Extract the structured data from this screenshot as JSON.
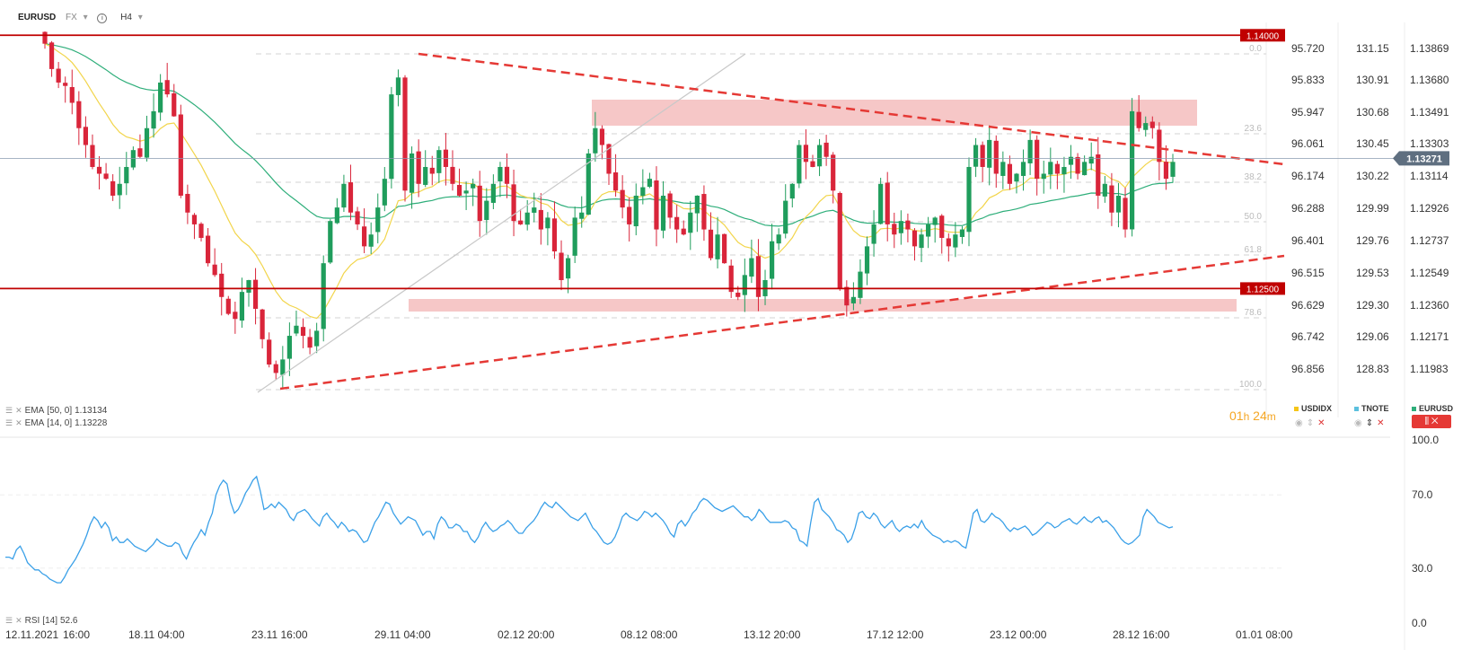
{
  "header": {
    "symbol": "EURUSD",
    "market": "FX",
    "timeframe": "H4"
  },
  "indicators": [
    {
      "label": "EMA",
      "params": "[50, 0]",
      "value": "1.13134",
      "color": "#2eae7a"
    },
    {
      "label": "EMA",
      "params": "[14, 0]",
      "value": "1.13228",
      "color": "#f2d54b"
    }
  ],
  "rsi_label": {
    "label": "RSI",
    "params": "[14]",
    "value": "52.6"
  },
  "countdown": {
    "hours": "01",
    "h_unit": "h",
    "minutes": "24",
    "m_unit": "m"
  },
  "series_keys": [
    {
      "name": "USDIDX",
      "color": "#f5c518"
    },
    {
      "name": "TNOTE",
      "color": "#5bc0de"
    },
    {
      "name": "EURUSD",
      "color": "#2eae7a"
    }
  ],
  "colors": {
    "bull": "#1f9d5c",
    "bear": "#d9253a",
    "level": "#c00000",
    "trend": "#e53935",
    "rsi": "#3aa0e8",
    "zone": "#f4b9b9"
  },
  "chart_data": [
    {
      "type": "candlestick",
      "x_tick_labels": [
        "12.11.2021",
        "16:00",
        "18.11 04:00",
        "23.11 16:00",
        "29.11 04:00",
        "02.12 20:00",
        "08.12 08:00",
        "13.12 20:00",
        "17.12 12:00",
        "23.12 00:00",
        "28.12 16:00",
        "01.01 08:00"
      ],
      "price_axis_eurusd": [
        "1.13869",
        "1.13680",
        "1.13491",
        "1.13303",
        "1.13114",
        "1.12926",
        "1.12737",
        "1.12549",
        "1.12360",
        "1.12171",
        "1.11983"
      ],
      "price_axis_usdidx": [
        "95.720",
        "95.833",
        "95.947",
        "96.061",
        "96.174",
        "96.288",
        "96.401",
        "96.515",
        "96.629",
        "96.742",
        "96.856"
      ],
      "price_axis_tnote": [
        "131.15",
        "130.91",
        "130.68",
        "130.45",
        "130.22",
        "129.99",
        "129.76",
        "129.53",
        "129.30",
        "129.06",
        "128.83"
      ],
      "current_price": "1.13271",
      "horizontal_levels": [
        {
          "price": 1.14,
          "label": "1.14000"
        },
        {
          "price": 1.125,
          "label": "1.12500"
        }
      ],
      "fibonacci_levels": [
        "0.0",
        "23.6",
        "38.2",
        "50.0",
        "61.8",
        "78.6",
        "100.0"
      ],
      "ylim": [
        1.1188,
        1.1406
      ],
      "ohlc_close": [
        1.1395,
        1.138,
        1.1372,
        1.137,
        1.136,
        1.1345,
        1.1335,
        1.1322,
        1.1318,
        1.1315,
        1.1305,
        1.1312,
        1.1322,
        1.1332,
        1.1328,
        1.1345,
        1.1355,
        1.1372,
        1.1365,
        1.1352,
        1.1305,
        1.1295,
        1.1288,
        1.128,
        1.1265,
        1.1258,
        1.1245,
        1.1235,
        1.1232,
        1.1248,
        1.1255,
        1.1238,
        1.122,
        1.1205,
        1.12,
        1.1208,
        1.1222,
        1.1228,
        1.1222,
        1.1215,
        1.1225,
        1.1265,
        1.129,
        1.1298,
        1.1312,
        1.1295,
        1.1288,
        1.1275,
        1.1282,
        1.1298,
        1.1315,
        1.1365,
        1.1375,
        1.1308,
        1.133,
        1.1312,
        1.1322,
        1.1318,
        1.1332,
        1.1322,
        1.1312,
        1.1305,
        1.1308,
        1.1312,
        1.129,
        1.1302,
        1.1312,
        1.1322,
        1.1312,
        1.129,
        1.1288,
        1.1295,
        1.1298,
        1.1285,
        1.1292,
        1.1272,
        1.1255,
        1.1268,
        1.1292,
        1.1295,
        1.133,
        1.1345,
        1.1335,
        1.1318,
        1.1308,
        1.1298,
        1.1288,
        1.1305,
        1.131,
        1.1315,
        1.1285,
        1.1305,
        1.1292,
        1.1285,
        1.1282,
        1.1295,
        1.1305,
        1.1285,
        1.1268,
        1.1282,
        1.1265,
        1.1248,
        1.1245,
        1.1258,
        1.1268,
        1.1245,
        1.1255,
        1.1278,
        1.1282,
        1.1302,
        1.1312,
        1.1335,
        1.1325,
        1.1322,
        1.1335,
        1.1328,
        1.1308,
        1.125,
        1.124,
        1.1245,
        1.126,
        1.1275,
        1.1288,
        1.1312,
        1.1288,
        1.1282,
        1.129,
        1.1285,
        1.1275,
        1.1282,
        1.1288,
        1.1292,
        1.128,
        1.1275,
        1.1282,
        1.1285,
        1.1322,
        1.1335,
        1.1322,
        1.1338,
        1.1318,
        1.1325,
        1.1312,
        1.1318,
        1.1325,
        1.1338,
        1.1315,
        1.1318,
        1.1325,
        1.1318,
        1.1322,
        1.1328,
        1.1318,
        1.1325,
        1.1328,
        1.1305,
        1.1312,
        1.1295,
        1.1305,
        1.1285,
        1.1355,
        1.1345,
        1.1348,
        1.1345,
        1.1325,
        1.1315,
        1.1325
      ],
      "series": [
        {
          "name": "EMA [50, 0]",
          "last": 1.13134
        },
        {
          "name": "EMA [14, 0]",
          "last": 1.13228
        }
      ]
    },
    {
      "type": "line",
      "ylim": [
        0,
        100
      ],
      "y_tick_labels": [
        "100.0",
        "70.0",
        "30.0",
        "0.0"
      ],
      "series": [
        {
          "name": "RSI [14]",
          "values": [
            36,
            36,
            35,
            40,
            42,
            38,
            33,
            31,
            29,
            29,
            27,
            26,
            24,
            23,
            22,
            22,
            25,
            29,
            32,
            35,
            39,
            43,
            48,
            54,
            58,
            56,
            52,
            55,
            52,
            45,
            47,
            44,
            44,
            46,
            44,
            42,
            41,
            40,
            39,
            41,
            43,
            46,
            44,
            43,
            42,
            42,
            44,
            43,
            38,
            35,
            40,
            44,
            47,
            51,
            48,
            55,
            60,
            70,
            75,
            78,
            76,
            66,
            60,
            62,
            66,
            71,
            74,
            78,
            80,
            72,
            62,
            63,
            65,
            63,
            66,
            64,
            62,
            58,
            56,
            60,
            61,
            62,
            60,
            57,
            55,
            53,
            58,
            60,
            57,
            55,
            52,
            55,
            53,
            50,
            51,
            50,
            47,
            44,
            45,
            50,
            55,
            58,
            62,
            66,
            65,
            60,
            57,
            54,
            56,
            58,
            57,
            56,
            52,
            48,
            50,
            50,
            46,
            54,
            58,
            56,
            52,
            52,
            54,
            53,
            50,
            50,
            46,
            44,
            47,
            52,
            55,
            52,
            50,
            51,
            53,
            54,
            56,
            54,
            51,
            49,
            49,
            52,
            54,
            56,
            59,
            63,
            66,
            64,
            63,
            66,
            64,
            62,
            60,
            58,
            57,
            56,
            58,
            60,
            56,
            52,
            50,
            47,
            44,
            43,
            44,
            47,
            52,
            58,
            60,
            58,
            57,
            56,
            58,
            61,
            60,
            58,
            60,
            58,
            56,
            53,
            49,
            47,
            54,
            56,
            53,
            56,
            60,
            62,
            66,
            68,
            67,
            65,
            63,
            62,
            61,
            62,
            63,
            64,
            62,
            60,
            58,
            58,
            56,
            58,
            62,
            60,
            57,
            55,
            55,
            55,
            55,
            56,
            55,
            52,
            51,
            45,
            44,
            42,
            55,
            66,
            68,
            62,
            60,
            58,
            55,
            51,
            50,
            48,
            44,
            46,
            52,
            60,
            61,
            58,
            57,
            60,
            58,
            54,
            52,
            54,
            56,
            52,
            50,
            52,
            53,
            52,
            54,
            52,
            56,
            52,
            50,
            48,
            47,
            46,
            44,
            45,
            44,
            45,
            44,
            42,
            41,
            50,
            60,
            62,
            56,
            55,
            57,
            60,
            58,
            57,
            55,
            52,
            50,
            52,
            51,
            52,
            53,
            51,
            48,
            49,
            51,
            53,
            55,
            54,
            52,
            53,
            55,
            56,
            57,
            55,
            54,
            56,
            58,
            56,
            55,
            57,
            58,
            55,
            56,
            54,
            52,
            49,
            46,
            44,
            43,
            44,
            46,
            48,
            58,
            62,
            60,
            58,
            55,
            54,
            53,
            52,
            52.6
          ]
        }
      ]
    }
  ]
}
